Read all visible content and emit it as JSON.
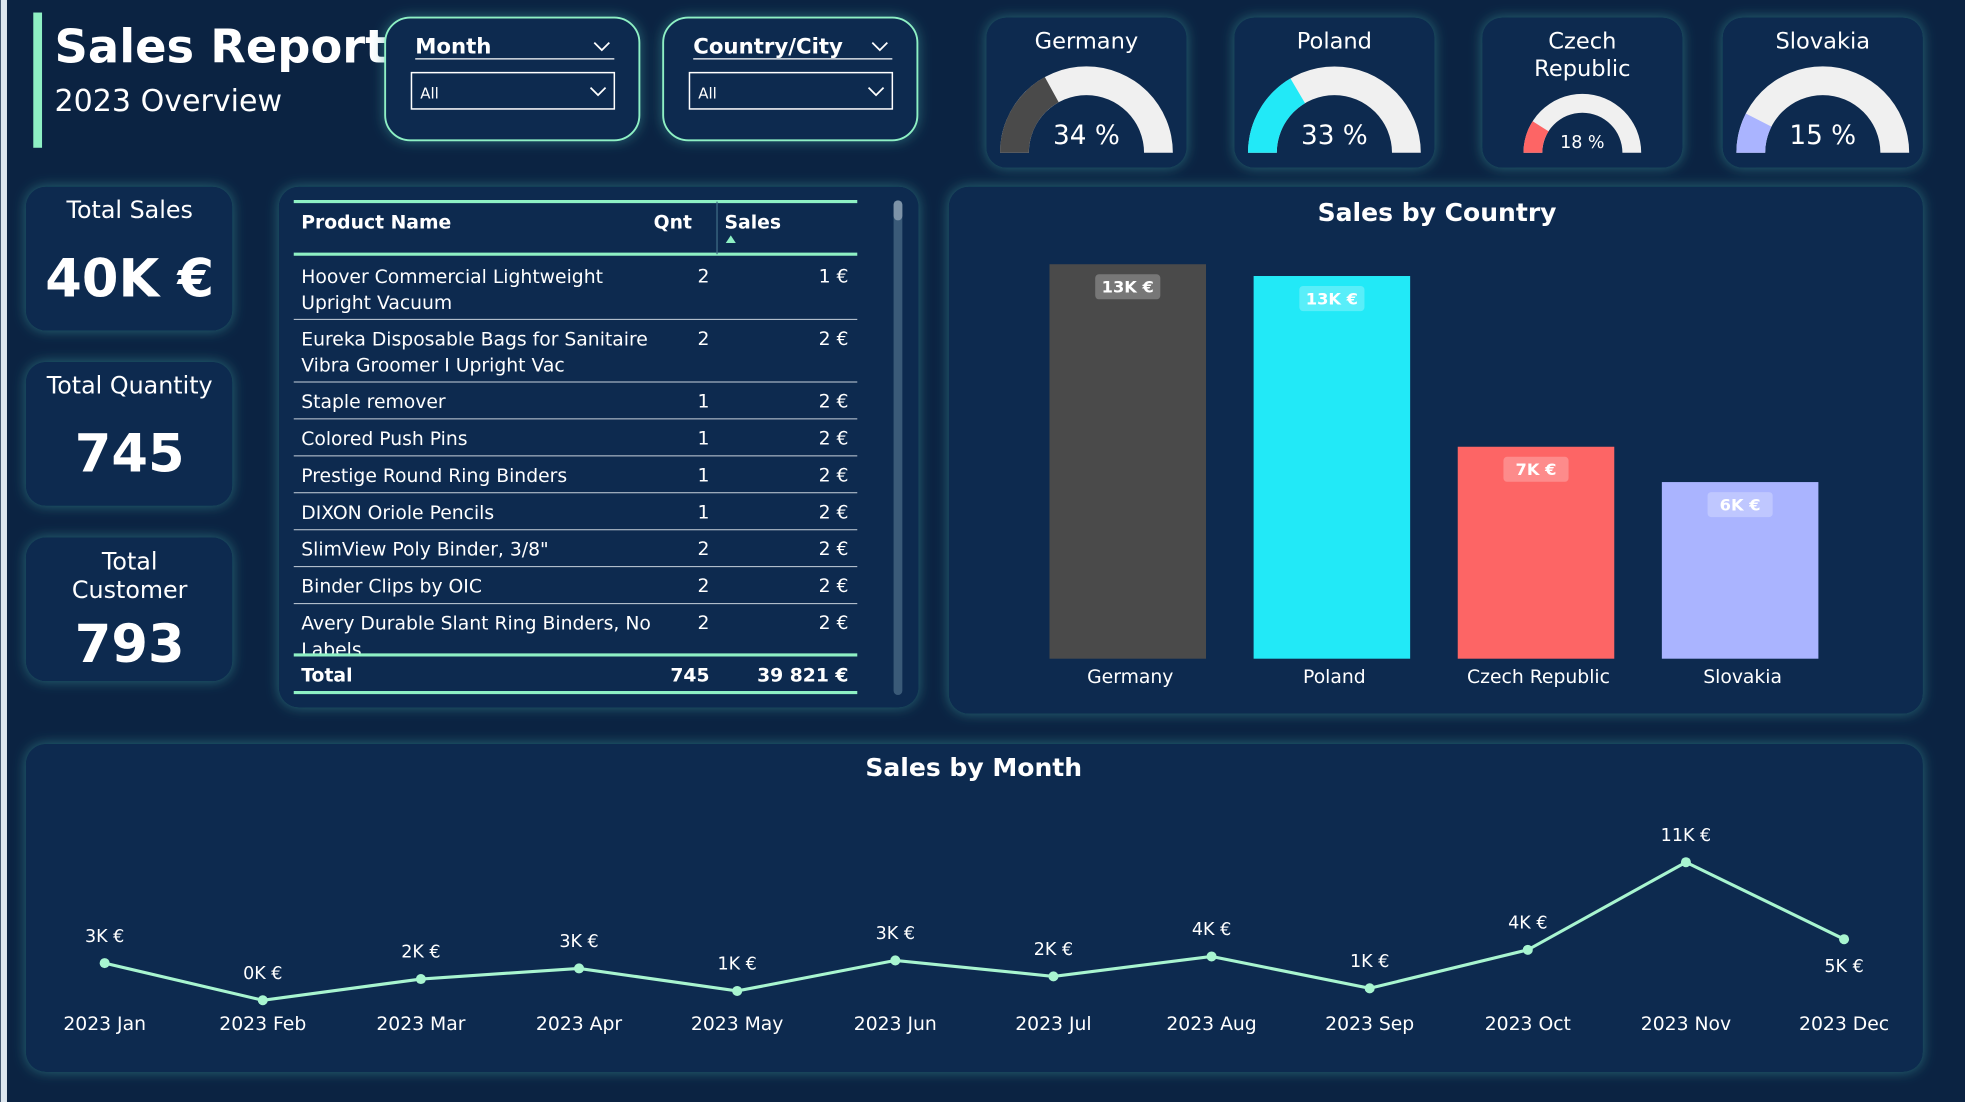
{
  "header": {
    "title": "Sales Report",
    "subtitle": "2023 Overview"
  },
  "slicers": [
    {
      "label": "Month",
      "value": "All"
    },
    {
      "label": "Country/City",
      "value": "All"
    }
  ],
  "kpis": [
    {
      "label": "Total Sales",
      "value": "40K €"
    },
    {
      "label": "Total Quantity",
      "value": "745"
    },
    {
      "label": "Total Customer",
      "value": "793"
    }
  ],
  "table": {
    "columns": [
      "Product Name",
      "Qnt",
      "Sales"
    ],
    "rows": [
      [
        "Hoover Commercial Lightweight Upright Vacuum",
        "2",
        "1 €"
      ],
      [
        "Eureka Disposable Bags for Sanitaire Vibra Groomer I Upright Vac",
        "2",
        "2 €"
      ],
      [
        "Staple remover",
        "1",
        "2 €"
      ],
      [
        "Colored Push Pins",
        "1",
        "2 €"
      ],
      [
        "Prestige Round Ring Binders",
        "1",
        "2 €"
      ],
      [
        "DIXON Oriole Pencils",
        "1",
        "2 €"
      ],
      [
        "SlimView Poly Binder, 3/8\"",
        "2",
        "2 €"
      ],
      [
        "Binder Clips by OIC",
        "2",
        "2 €"
      ],
      [
        "Avery Durable Slant Ring Binders, No Labels",
        "2",
        "2 €"
      ]
    ],
    "total": [
      "Total",
      "745",
      "39 821 €"
    ]
  },
  "chart_data": [
    {
      "type": "gauge",
      "title": "Germany",
      "value": 34,
      "value_label": "34 %",
      "color": "#4a4a4a"
    },
    {
      "type": "gauge",
      "title": "Poland",
      "value": 33,
      "value_label": "33 %",
      "color": "#22e9f7"
    },
    {
      "type": "gauge",
      "title": "Czech Republic",
      "value": 18,
      "value_label": "18 %",
      "color": "#fd6565"
    },
    {
      "type": "gauge",
      "title": "Slovakia",
      "value": 15,
      "value_label": "15 %",
      "color": "#aab4ff"
    },
    {
      "type": "bar",
      "title": "Sales by Country",
      "categories": [
        "Germany",
        "Poland",
        "Czech Republic",
        "Slovakia"
      ],
      "values": [
        13.4,
        13.0,
        7.2,
        6.0
      ],
      "value_labels": [
        "13K €",
        "13K €",
        "7K €",
        "6K €"
      ],
      "colors": [
        "#4a4a4a",
        "#22e9f7",
        "#fd6565",
        "#aab4ff"
      ]
    },
    {
      "type": "line",
      "title": "Sales by Month",
      "categories": [
        "2023 Jan",
        "2023 Feb",
        "2023 Mar",
        "2023 Apr",
        "2023 May",
        "2023 Jun",
        "2023 Jul",
        "2023 Aug",
        "2023 Sep",
        "2023 Oct",
        "2023 Nov",
        "2023 Dec"
      ],
      "values": [
        3.2,
        0.4,
        2.0,
        2.8,
        1.1,
        3.4,
        2.2,
        3.7,
        1.3,
        4.2,
        10.8,
        5.0
      ],
      "value_labels": [
        "3K €",
        "0K €",
        "2K €",
        "3K €",
        "1K €",
        "3K €",
        "2K €",
        "4K €",
        "1K €",
        "4K €",
        "11K €",
        "5K €"
      ],
      "color": "#a8f5d0"
    }
  ]
}
